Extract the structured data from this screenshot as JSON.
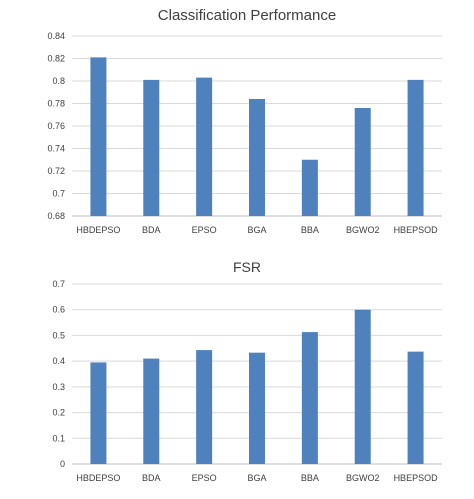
{
  "colors": {
    "bar": "#4f81bd",
    "grid": "#d9d9d9",
    "text": "#404040"
  },
  "chart_data": [
    {
      "type": "bar",
      "title": "Classification Performance",
      "xlabel": "",
      "ylabel": "",
      "categories": [
        "HBDEPSO",
        "BDA",
        "EPSO",
        "BGA",
        "BBA",
        "BGWO2",
        "HBEPSOD"
      ],
      "values": [
        0.821,
        0.801,
        0.803,
        0.784,
        0.73,
        0.776,
        0.801
      ],
      "ylim": [
        0.68,
        0.84
      ],
      "yticks": [
        "0.68",
        "0.7",
        "0.72",
        "0.74",
        "0.76",
        "0.78",
        "0.8",
        "0.82",
        "0.84"
      ],
      "grid": true,
      "legend": "none"
    },
    {
      "type": "bar",
      "title": "FSR",
      "xlabel": "",
      "ylabel": "",
      "categories": [
        "HBDEPSO",
        "BDA",
        "EPSO",
        "BGA",
        "BBA",
        "BGWO2",
        "HBEPSOD"
      ],
      "values": [
        0.395,
        0.41,
        0.443,
        0.433,
        0.513,
        0.6,
        0.437
      ],
      "ylim": [
        0,
        0.7
      ],
      "yticks": [
        "0",
        "0.1",
        "0.2",
        "0.3",
        "0.4",
        "0.5",
        "0.6",
        "0.7"
      ],
      "grid": true,
      "legend": "none"
    }
  ]
}
